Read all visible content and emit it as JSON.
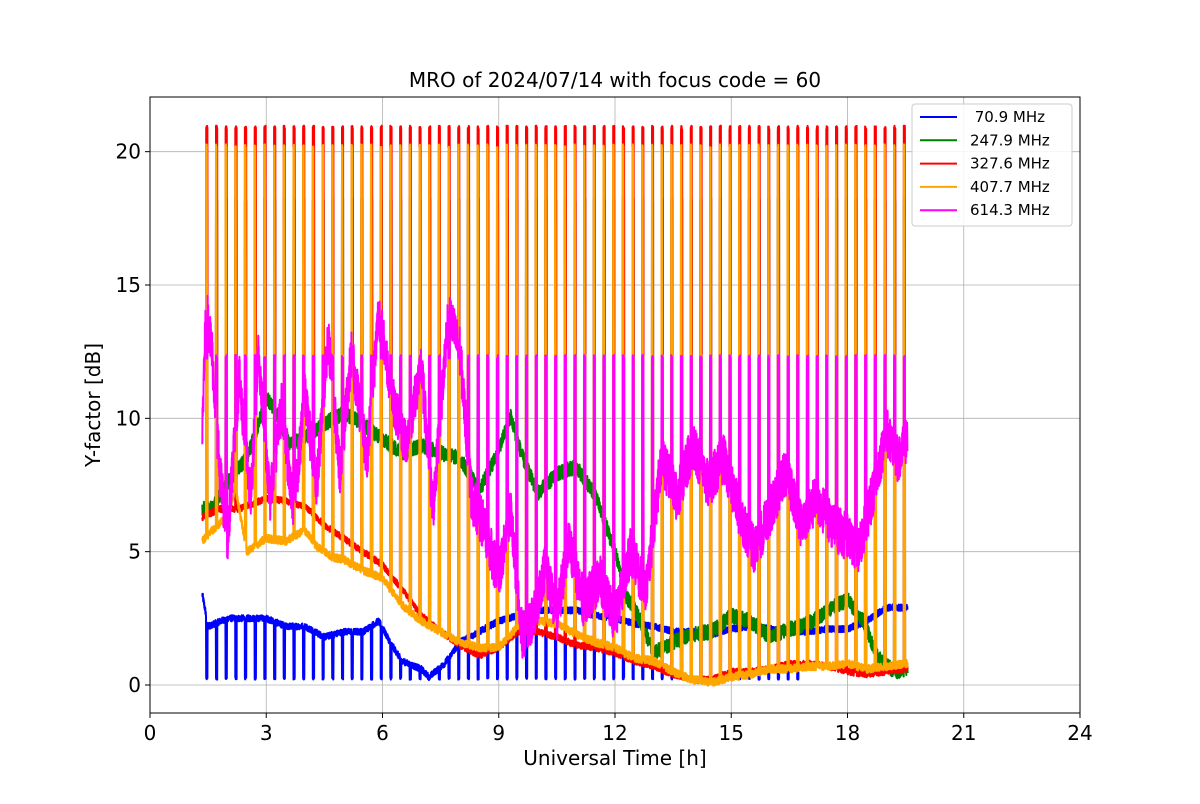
{
  "chart_data": {
    "type": "line",
    "title": "MRO of 2024/07/14 with focus code = 60",
    "xlabel": "Universal Time [h]",
    "ylabel": "Y-factor [dB]",
    "xlim": [
      0,
      24
    ],
    "ylim": [
      -1.05,
      22.05
    ],
    "xticks": [
      0,
      3,
      6,
      9,
      12,
      15,
      18,
      21,
      24
    ],
    "yticks": [
      0,
      5,
      10,
      15,
      20
    ],
    "grid": true,
    "legend_position": "top-right",
    "x_range_observed": [
      1.35,
      19.55
    ],
    "calibration_pulse_period_h": 0.25,
    "series": [
      {
        "name": " 70.9 MHz",
        "color": "#0000ff",
        "baseline": [
          [
            1.35,
            3.4
          ],
          [
            1.5,
            2.2
          ],
          [
            2.0,
            2.5
          ],
          [
            3.0,
            2.5
          ],
          [
            3.5,
            2.2
          ],
          [
            4.0,
            2.2
          ],
          [
            4.5,
            1.8
          ],
          [
            5.0,
            2.0
          ],
          [
            5.5,
            2.0
          ],
          [
            5.9,
            2.4
          ],
          [
            6.2,
            1.6
          ],
          [
            6.5,
            0.9
          ],
          [
            7.0,
            0.6
          ],
          [
            7.2,
            0.3
          ],
          [
            7.6,
            0.8
          ],
          [
            8.0,
            1.6
          ],
          [
            8.5,
            2.0
          ],
          [
            9.0,
            2.4
          ],
          [
            9.5,
            2.6
          ],
          [
            10.0,
            2.8
          ],
          [
            10.5,
            2.8
          ],
          [
            11.0,
            2.8
          ],
          [
            11.5,
            2.6
          ],
          [
            12.0,
            2.5
          ],
          [
            12.5,
            2.3
          ],
          [
            13.0,
            2.2
          ],
          [
            13.5,
            2.0
          ],
          [
            14.0,
            2.0
          ],
          [
            14.5,
            1.9
          ],
          [
            15.0,
            2.1
          ],
          [
            15.5,
            2.2
          ],
          [
            16.0,
            2.1
          ],
          [
            16.5,
            2.0
          ],
          [
            17.0,
            2.0
          ],
          [
            17.5,
            2.1
          ],
          [
            18.0,
            2.1
          ],
          [
            18.5,
            2.4
          ],
          [
            19.0,
            2.9
          ],
          [
            19.5,
            2.9
          ]
        ],
        "pulse_low": 0.2,
        "pulse_until_h": 16.8
      },
      {
        "name": "247.9 MHz",
        "color": "#008000",
        "baseline": [
          [
            1.35,
            6.6
          ],
          [
            1.6,
            6.6
          ],
          [
            2.0,
            7.6
          ],
          [
            2.5,
            8.5
          ],
          [
            2.8,
            9.8
          ],
          [
            3.0,
            10.8
          ],
          [
            3.3,
            10.1
          ],
          [
            3.6,
            9.0
          ],
          [
            4.0,
            9.3
          ],
          [
            4.5,
            9.8
          ],
          [
            5.0,
            10.2
          ],
          [
            5.5,
            9.8
          ],
          [
            6.0,
            9.2
          ],
          [
            6.5,
            8.7
          ],
          [
            7.0,
            9.0
          ],
          [
            7.5,
            8.7
          ],
          [
            8.0,
            8.5
          ],
          [
            8.5,
            7.3
          ],
          [
            9.0,
            8.8
          ],
          [
            9.3,
            10.1
          ],
          [
            9.6,
            8.6
          ],
          [
            10.0,
            7.2
          ],
          [
            10.5,
            7.9
          ],
          [
            11.0,
            8.2
          ],
          [
            11.5,
            7.1
          ],
          [
            12.0,
            5.0
          ],
          [
            12.3,
            3.3
          ],
          [
            12.6,
            2.6
          ],
          [
            13.0,
            1.2
          ],
          [
            13.5,
            1.6
          ],
          [
            14.0,
            1.9
          ],
          [
            14.5,
            2.0
          ],
          [
            15.0,
            2.6
          ],
          [
            15.5,
            2.4
          ],
          [
            16.0,
            1.8
          ],
          [
            16.5,
            2.1
          ],
          [
            17.0,
            2.3
          ],
          [
            17.5,
            2.8
          ],
          [
            18.0,
            3.2
          ],
          [
            18.4,
            2.4
          ],
          [
            18.8,
            1.0
          ],
          [
            19.2,
            0.5
          ],
          [
            19.5,
            0.6
          ]
        ],
        "pulse_high": 18.2
      },
      {
        "name": "327.6 MHz",
        "color": "#ff0000",
        "baseline": [
          [
            1.35,
            6.3
          ],
          [
            1.8,
            6.6
          ],
          [
            2.3,
            6.6
          ],
          [
            3.0,
            7.0
          ],
          [
            3.5,
            6.9
          ],
          [
            4.0,
            6.7
          ],
          [
            4.5,
            6.0
          ],
          [
            5.0,
            5.5
          ],
          [
            5.5,
            5.0
          ],
          [
            6.0,
            4.5
          ],
          [
            6.5,
            3.6
          ],
          [
            7.0,
            2.6
          ],
          [
            7.5,
            2.0
          ],
          [
            8.0,
            1.5
          ],
          [
            8.5,
            1.1
          ],
          [
            9.0,
            1.4
          ],
          [
            9.5,
            2.0
          ],
          [
            10.0,
            2.0
          ],
          [
            10.5,
            1.8
          ],
          [
            11.0,
            1.5
          ],
          [
            11.5,
            1.4
          ],
          [
            12.0,
            1.2
          ],
          [
            12.5,
            0.9
          ],
          [
            13.0,
            0.7
          ],
          [
            13.5,
            0.4
          ],
          [
            14.0,
            0.2
          ],
          [
            14.5,
            0.2
          ],
          [
            15.0,
            0.5
          ],
          [
            15.5,
            0.5
          ],
          [
            16.0,
            0.6
          ],
          [
            16.5,
            0.8
          ],
          [
            17.0,
            0.8
          ],
          [
            17.5,
            0.7
          ],
          [
            18.0,
            0.5
          ],
          [
            18.5,
            0.4
          ],
          [
            19.0,
            0.5
          ],
          [
            19.5,
            0.6
          ]
        ],
        "pulse_high": 20.9
      },
      {
        "name": "407.7 MHz",
        "color": "#ffa500",
        "baseline": [
          [
            1.35,
            5.4
          ],
          [
            1.6,
            5.8
          ],
          [
            2.0,
            6.3
          ],
          [
            2.2,
            7.4
          ],
          [
            2.5,
            5.0
          ],
          [
            3.0,
            5.5
          ],
          [
            3.5,
            5.4
          ],
          [
            4.0,
            5.8
          ],
          [
            4.3,
            5.2
          ],
          [
            4.7,
            4.8
          ],
          [
            5.0,
            4.7
          ],
          [
            5.5,
            4.3
          ],
          [
            6.0,
            4.0
          ],
          [
            6.5,
            3.0
          ],
          [
            7.0,
            2.4
          ],
          [
            7.5,
            2.0
          ],
          [
            8.0,
            1.6
          ],
          [
            8.5,
            1.4
          ],
          [
            9.0,
            1.4
          ],
          [
            9.5,
            2.2
          ],
          [
            10.0,
            2.4
          ],
          [
            10.5,
            2.3
          ],
          [
            11.0,
            1.9
          ],
          [
            11.5,
            1.6
          ],
          [
            12.0,
            1.4
          ],
          [
            12.5,
            1.0
          ],
          [
            13.0,
            0.9
          ],
          [
            13.5,
            0.5
          ],
          [
            14.0,
            0.2
          ],
          [
            14.5,
            0.1
          ],
          [
            15.0,
            0.3
          ],
          [
            15.5,
            0.4
          ],
          [
            16.0,
            0.6
          ],
          [
            16.5,
            0.6
          ],
          [
            17.0,
            0.7
          ],
          [
            17.5,
            0.7
          ],
          [
            18.0,
            0.8
          ],
          [
            18.5,
            0.6
          ],
          [
            19.0,
            0.7
          ],
          [
            19.5,
            0.8
          ]
        ],
        "pulse_high": 20.2,
        "pulse_mid": 12.3
      },
      {
        "name": "614.3 MHz",
        "color": "#ff00ff",
        "baseline": [
          [
            1.35,
            9.5
          ],
          [
            1.45,
            14.3
          ],
          [
            1.6,
            12.5
          ],
          [
            1.8,
            8.0
          ],
          [
            2.0,
            5.5
          ],
          [
            2.3,
            11.5
          ],
          [
            2.6,
            7.0
          ],
          [
            2.8,
            12.5
          ],
          [
            3.1,
            7.0
          ],
          [
            3.4,
            10.5
          ],
          [
            3.7,
            6.5
          ],
          [
            4.0,
            10.8
          ],
          [
            4.3,
            7.5
          ],
          [
            4.6,
            13.0
          ],
          [
            4.9,
            8.0
          ],
          [
            5.2,
            12.5
          ],
          [
            5.6,
            8.5
          ],
          [
            5.9,
            14.0
          ],
          [
            6.3,
            10.5
          ],
          [
            6.6,
            9.0
          ],
          [
            7.0,
            12.0
          ],
          [
            7.3,
            6.5
          ],
          [
            7.7,
            14.0
          ],
          [
            8.0,
            12.5
          ],
          [
            8.3,
            7.0
          ],
          [
            8.6,
            6.0
          ],
          [
            9.0,
            4.0
          ],
          [
            9.3,
            6.5
          ],
          [
            9.6,
            1.8
          ],
          [
            9.9,
            2.5
          ],
          [
            10.2,
            4.5
          ],
          [
            10.5,
            2.5
          ],
          [
            10.8,
            5.5
          ],
          [
            11.2,
            3.0
          ],
          [
            11.6,
            4.0
          ],
          [
            12.0,
            2.5
          ],
          [
            12.4,
            5.0
          ],
          [
            12.8,
            3.5
          ],
          [
            13.2,
            8.5
          ],
          [
            13.6,
            7.0
          ],
          [
            14.0,
            9.0
          ],
          [
            14.4,
            7.5
          ],
          [
            14.8,
            8.5
          ],
          [
            15.2,
            6.5
          ],
          [
            15.6,
            5.0
          ],
          [
            16.0,
            6.5
          ],
          [
            16.4,
            8.0
          ],
          [
            16.8,
            6.0
          ],
          [
            17.2,
            7.0
          ],
          [
            17.6,
            6.0
          ],
          [
            18.0,
            5.5
          ],
          [
            18.3,
            5.0
          ],
          [
            18.7,
            7.5
          ],
          [
            19.0,
            9.5
          ],
          [
            19.3,
            8.5
          ],
          [
            19.5,
            9.0
          ]
        ],
        "pulse_high": 12.3
      }
    ]
  }
}
